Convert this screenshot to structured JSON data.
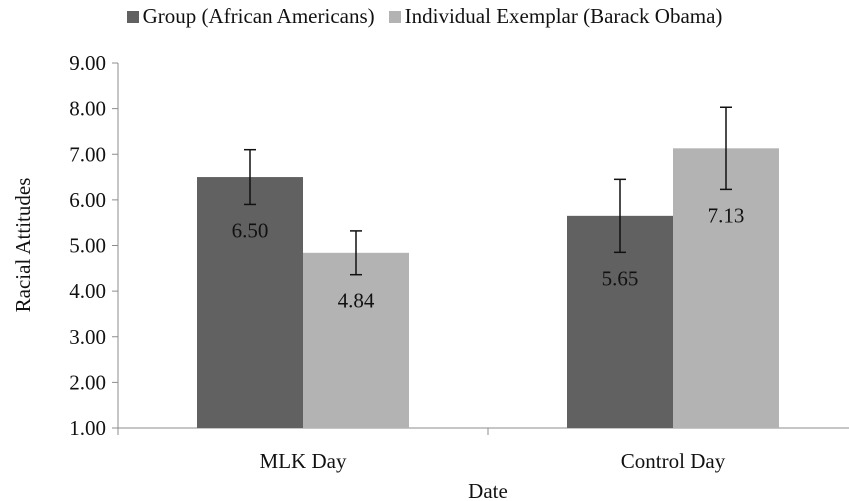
{
  "chart_data": {
    "type": "bar",
    "title": "",
    "xlabel": "Date",
    "ylabel": "Racial Attitudes",
    "ylim": [
      1,
      9
    ],
    "yticks": [
      "1.00",
      "2.00",
      "3.00",
      "4.00",
      "5.00",
      "6.00",
      "7.00",
      "8.00",
      "9.00"
    ],
    "categories": [
      "MLK Day",
      "Control Day"
    ],
    "grid": false,
    "legend_position": "top",
    "series": [
      {
        "name": "Group (African Americans)",
        "color": "#616161",
        "values": [
          6.5,
          5.65
        ],
        "value_labels": [
          "6.50",
          "5.65"
        ],
        "error_low": [
          5.9,
          4.85
        ],
        "error_high": [
          7.1,
          6.45
        ]
      },
      {
        "name": "Individual Exemplar (Barack Obama)",
        "color": "#b3b3b3",
        "values": [
          4.84,
          7.13
        ],
        "value_labels": [
          "4.84",
          "7.13"
        ],
        "error_low": [
          4.36,
          6.23
        ],
        "error_high": [
          5.32,
          8.03
        ]
      }
    ]
  }
}
